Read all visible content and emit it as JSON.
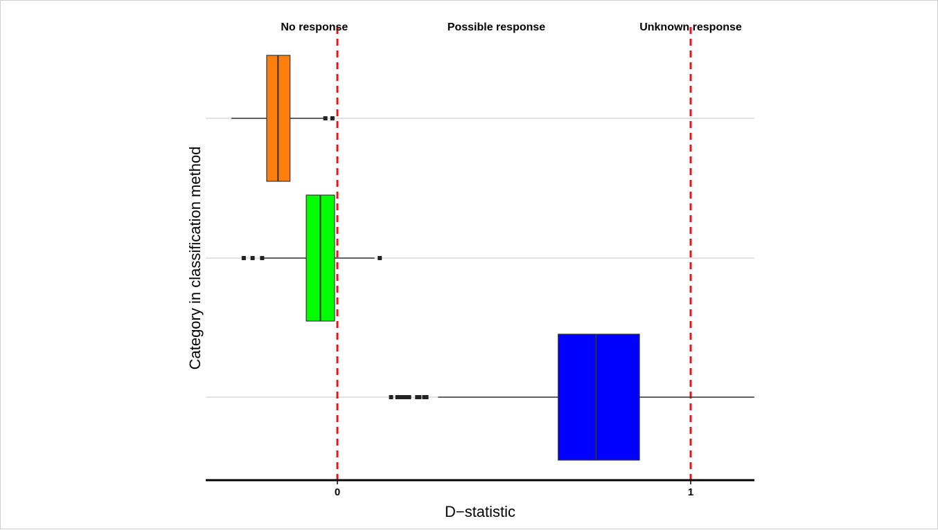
{
  "chart_data": {
    "type": "boxplot",
    "orientation": "horizontal",
    "title": "",
    "xlabel": "D−statistic",
    "ylabel": "Category in classification method",
    "xlim": [
      -0.375,
      1.18
    ],
    "x_ticks": [
      {
        "value": 0,
        "label": "0"
      },
      {
        "value": 1,
        "label": "1"
      }
    ],
    "reference_lines": [
      {
        "value": 0,
        "color": "#e8141c",
        "style": "dashed"
      },
      {
        "value": 1,
        "color": "#e8141c",
        "style": "dashed"
      }
    ],
    "region_labels": [
      {
        "label": "No response",
        "x": -0.065
      },
      {
        "label": "Possible response",
        "x": 0.45
      },
      {
        "label": "Unknown response",
        "x": 1.0
      }
    ],
    "categories": [
      "",
      "",
      ""
    ],
    "boxes": [
      {
        "color": "#ff7f0e",
        "whisker_low": -0.3,
        "q1": -0.2,
        "median": -0.168,
        "q3": -0.134,
        "whisker_high": -0.04,
        "outliers": [
          -0.034,
          -0.014
        ]
      },
      {
        "color": "#00ff00",
        "whisker_low": -0.212,
        "q1": -0.088,
        "median": -0.048,
        "q3": -0.008,
        "whisker_high": 0.105,
        "outliers": [
          -0.265,
          -0.24,
          -0.213,
          0.12
        ]
      },
      {
        "color": "#0000ff",
        "whisker_low": 0.285,
        "q1": 0.625,
        "median": 0.732,
        "q3 ": 0.855,
        "q3": 0.855,
        "whisker_high": 1.18,
        "outliers": [
          0.152,
          0.17,
          0.178,
          0.184,
          0.19,
          0.196,
          0.203,
          0.226,
          0.232,
          0.246,
          0.252
        ]
      }
    ],
    "grid": "horizontal major lines at categories"
  }
}
